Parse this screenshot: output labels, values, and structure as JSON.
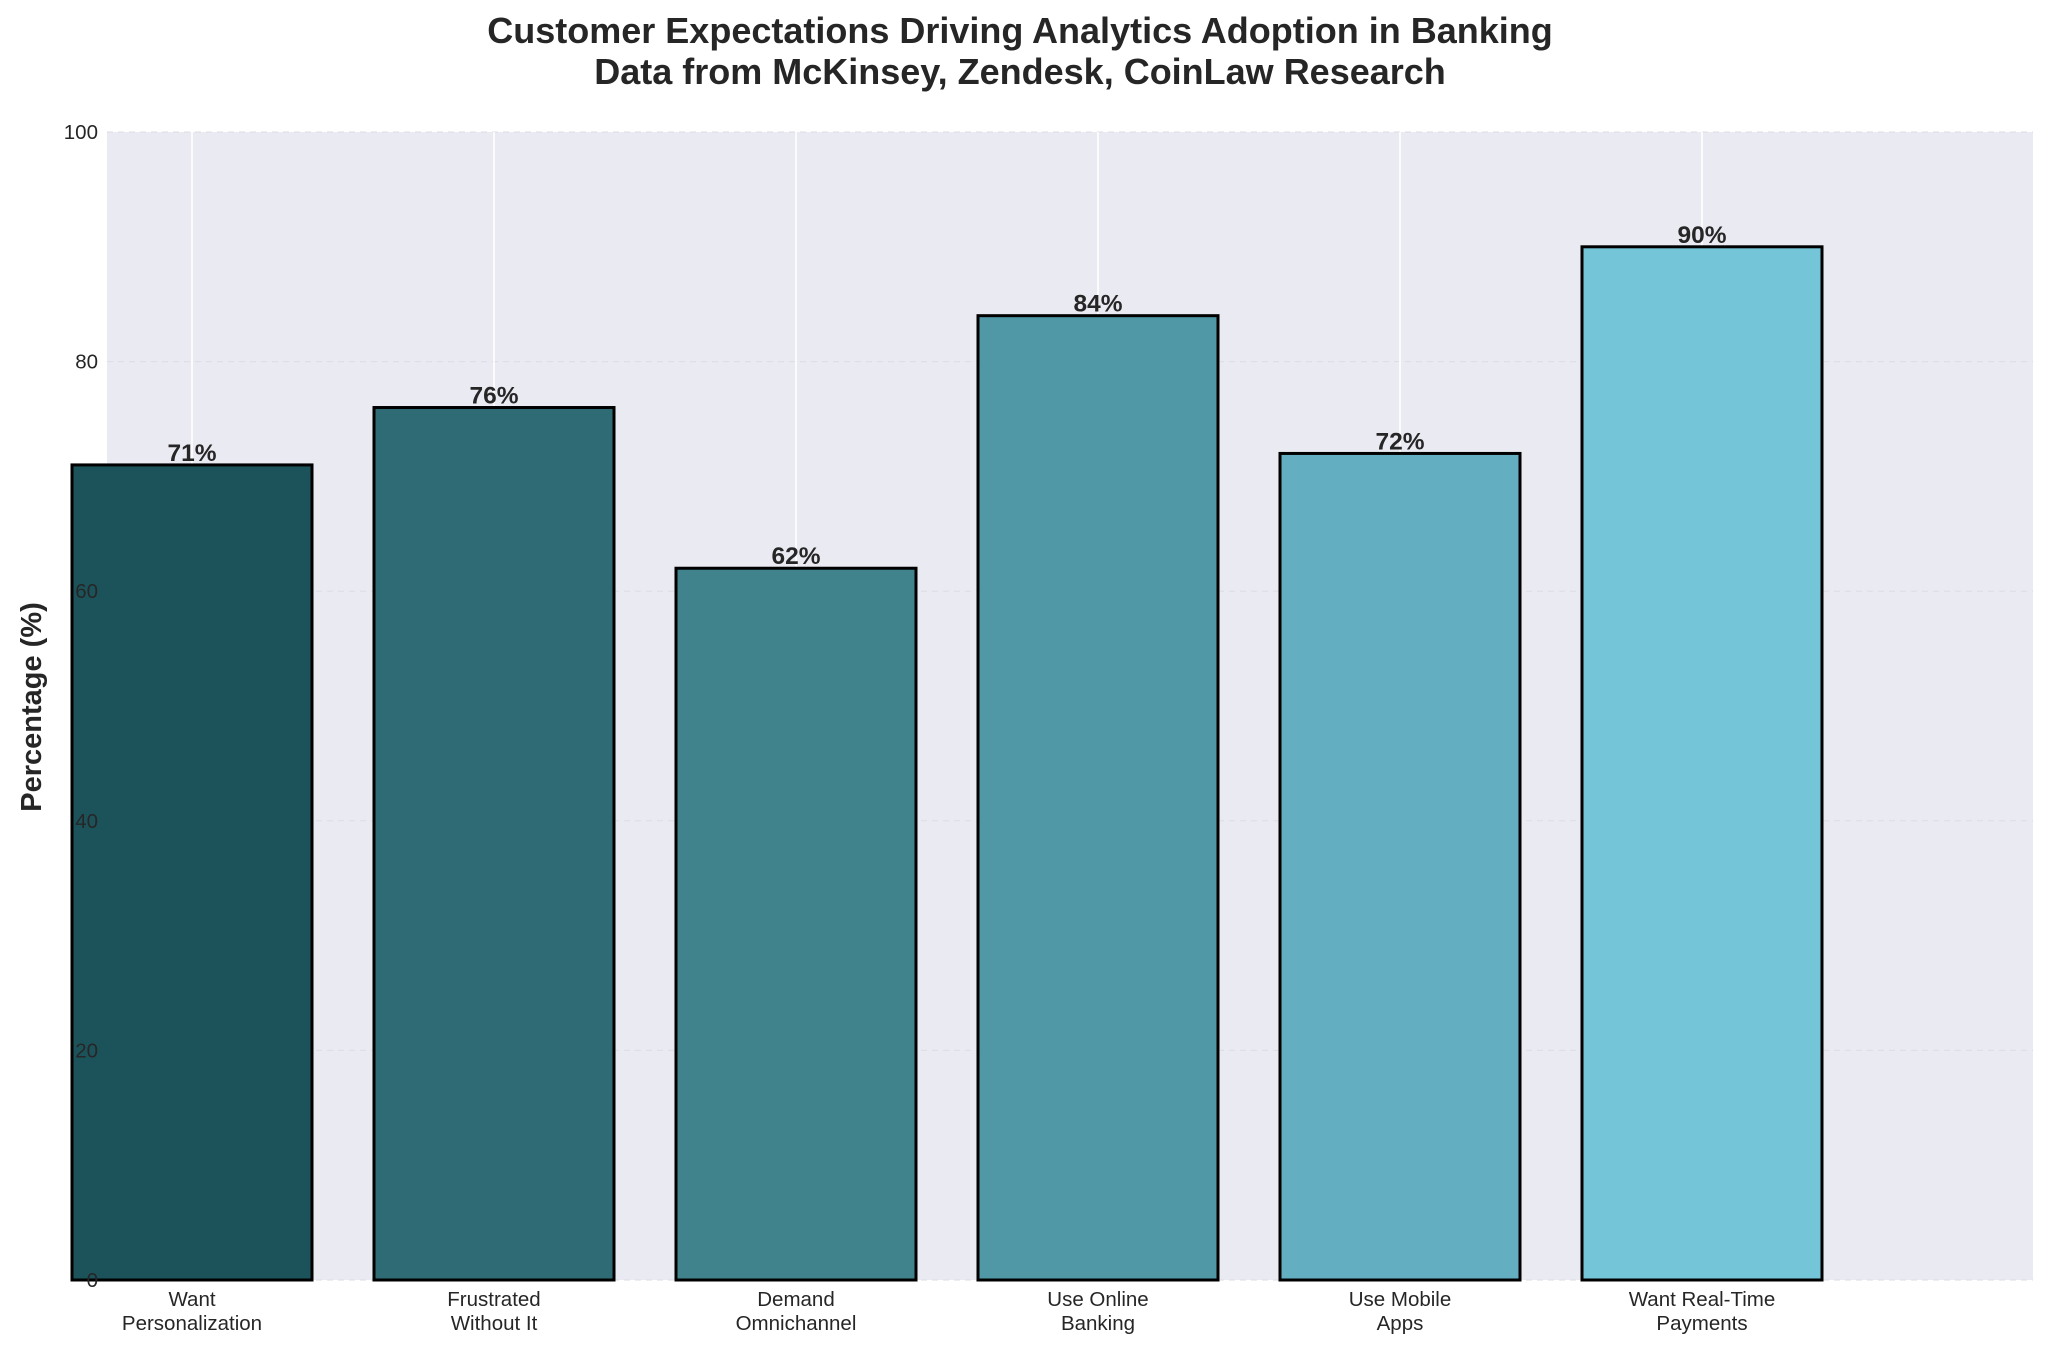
{
  "chart_data": {
    "type": "bar",
    "title": "Customer Expectations Driving Analytics Adoption in Banking",
    "subtitle": "Data from McKinsey, Zendesk, CoinLaw Research",
    "xlabel": "",
    "ylabel": "Percentage (%)",
    "ylim": [
      0,
      100
    ],
    "yticks": [
      "0",
      "20",
      "40",
      "60",
      "80",
      "100"
    ],
    "grid": true,
    "categories": [
      [
        "Want",
        "Personalization"
      ],
      [
        "Frustrated",
        "Without It"
      ],
      [
        "Demand",
        "Omnichannel"
      ],
      [
        "Use Online",
        "Banking"
      ],
      [
        "Use Mobile",
        "Apps"
      ],
      [
        "Want Real-Time",
        "Payments"
      ]
    ],
    "values": [
      71,
      76,
      62,
      84,
      72,
      90
    ],
    "value_labels": [
      "71%",
      "76%",
      "62%",
      "84%",
      "72%",
      "90%"
    ],
    "colors": [
      "#1c535b",
      "#2e6b75",
      "#40838d",
      "#5198a6",
      "#63aec0",
      "#75c5d8"
    ]
  },
  "style": {
    "plot_background": "#eaeaf2",
    "grid_color": "#ffffff",
    "bar_edge_color": "#000000",
    "text_color": "#262626"
  }
}
